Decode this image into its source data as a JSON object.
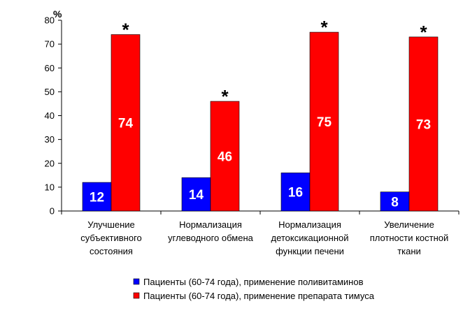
{
  "chart_data": {
    "type": "bar",
    "ylabel": "%",
    "ylim": [
      0,
      80
    ],
    "yticks": [
      0,
      10,
      20,
      30,
      40,
      50,
      60,
      70,
      80
    ],
    "grid": false,
    "legend_position": "bottom",
    "categories": [
      [
        "Улучшение",
        "субъективного",
        "состояния"
      ],
      [
        "Нормализация",
        "углеводного обмена"
      ],
      [
        "Нормализация",
        "детоксикационной",
        "функции печени"
      ],
      [
        "Увеличение",
        "плотности костной",
        "ткани"
      ]
    ],
    "series": [
      {
        "name": "Пациенты (60-74 года), применение поливитаминов",
        "color": "#0000ff",
        "values": [
          12,
          14,
          16,
          8
        ],
        "labels": [
          "12",
          "14",
          "16",
          "8"
        ]
      },
      {
        "name": "Пациенты (60-74 года), применение препарата тимуса",
        "color": "#ff0000",
        "values": [
          74,
          46,
          75,
          73
        ],
        "labels": [
          "74",
          "46",
          "75",
          "73"
        ]
      }
    ],
    "significance_marker": "*"
  }
}
